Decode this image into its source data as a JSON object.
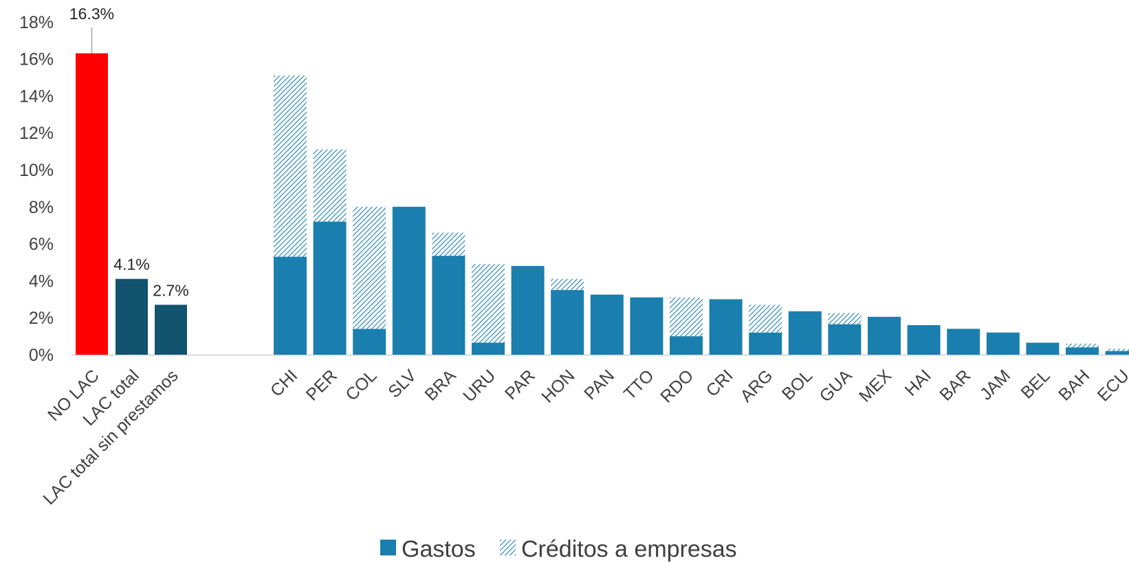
{
  "chart_data": {
    "type": "bar",
    "stacked": true,
    "ylim": [
      0,
      18
    ],
    "yticks": [
      0,
      2,
      4,
      6,
      8,
      10,
      12,
      14,
      16,
      18
    ],
    "ytick_format": "%",
    "grid": false,
    "legend_position": "bottom",
    "colors": {
      "no_lac": "#FF0000",
      "lac": "#12536E",
      "gastos": "#1A7FAE",
      "creditos": "#1A7FAE",
      "axis": "#D9D9D9",
      "leader": "#A6A6A6"
    },
    "summary": {
      "categories": [
        "NO LAC",
        "LAC total",
        "LAC total sin prestamos"
      ],
      "values": [
        16.3,
        4.1,
        2.7
      ],
      "labels": [
        "16.3%",
        "4.1%",
        "2.7%"
      ]
    },
    "categories": [
      "CHI",
      "PER",
      "COL",
      "SLV",
      "BRA",
      "URU",
      "PAR",
      "HON",
      "PAN",
      "TTO",
      "RDO",
      "CRI",
      "ARG",
      "BOL",
      "GUA",
      "MEX",
      "HAI",
      "BAR",
      "JAM",
      "BEL",
      "BAH",
      "ECU"
    ],
    "series": [
      {
        "name": "Gastos",
        "values": [
          5.3,
          7.2,
          1.4,
          8.0,
          5.35,
          0.65,
          4.8,
          3.5,
          3.25,
          3.1,
          1.0,
          3.0,
          1.2,
          2.35,
          1.65,
          2.05,
          1.6,
          1.4,
          1.2,
          0.65,
          0.4,
          0.2
        ]
      },
      {
        "name": "Créditos a empresas",
        "values": [
          9.8,
          3.9,
          6.6,
          0.0,
          1.25,
          4.25,
          0.0,
          0.6,
          0.0,
          0.0,
          2.1,
          0.0,
          1.5,
          0.0,
          0.6,
          0.0,
          0.0,
          0.0,
          0.0,
          0.0,
          0.2,
          0.12
        ]
      }
    ]
  }
}
